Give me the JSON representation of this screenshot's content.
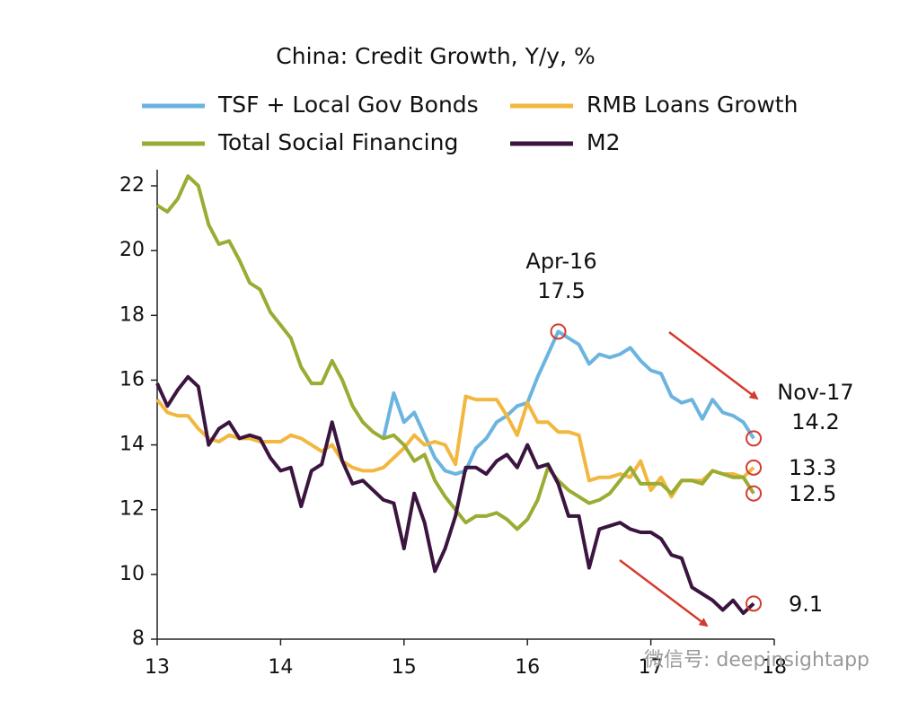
{
  "chart_data": {
    "type": "line",
    "title": "China: Credit Growth, Y/y, %",
    "x": [
      13,
      13.083,
      13.167,
      13.25,
      13.333,
      13.417,
      13.5,
      13.583,
      13.667,
      13.75,
      13.833,
      13.917,
      14,
      14.083,
      14.167,
      14.25,
      14.333,
      14.417,
      14.5,
      14.583,
      14.667,
      14.75,
      14.833,
      14.917,
      15,
      15.083,
      15.167,
      15.25,
      15.333,
      15.417,
      15.5,
      15.583,
      15.667,
      15.75,
      15.833,
      15.917,
      16,
      16.083,
      16.167,
      16.25,
      16.333,
      16.417,
      16.5,
      16.583,
      16.667,
      16.75,
      16.833,
      16.917,
      17,
      17.083,
      17.167,
      17.25,
      17.333,
      17.417,
      17.5,
      17.583,
      17.667,
      17.75,
      17.833
    ],
    "series": [
      {
        "name": "TSF + Local Gov Bonds",
        "color": "#6cb4e0",
        "values": [
          null,
          null,
          null,
          null,
          null,
          null,
          null,
          null,
          null,
          null,
          null,
          null,
          null,
          null,
          null,
          null,
          null,
          null,
          null,
          null,
          null,
          null,
          14.2,
          15.6,
          14.7,
          15.0,
          14.3,
          13.6,
          13.2,
          13.1,
          13.2,
          13.9,
          14.2,
          14.7,
          14.9,
          15.2,
          15.3,
          16.1,
          16.8,
          17.5,
          17.3,
          17.1,
          16.5,
          16.8,
          16.7,
          16.8,
          17.0,
          16.6,
          16.3,
          16.2,
          15.5,
          15.3,
          15.4,
          14.8,
          15.4,
          15.0,
          14.9,
          14.7,
          14.2
        ]
      },
      {
        "name": "RMB Loans Growth",
        "color": "#f2b73f",
        "values": [
          15.4,
          15.0,
          14.9,
          14.9,
          14.5,
          14.2,
          14.1,
          14.3,
          14.2,
          14.2,
          14.1,
          14.1,
          14.1,
          14.3,
          14.2,
          14.0,
          13.8,
          14.0,
          13.5,
          13.3,
          13.2,
          13.2,
          13.3,
          13.6,
          13.9,
          14.3,
          14.0,
          14.1,
          14.0,
          13.4,
          15.5,
          15.4,
          15.4,
          15.4,
          14.9,
          14.3,
          15.3,
          14.7,
          14.7,
          14.4,
          14.4,
          14.3,
          12.9,
          13.0,
          13.0,
          13.1,
          13.0,
          13.5,
          12.6,
          13.0,
          12.4,
          12.9,
          12.9,
          12.9,
          13.2,
          13.1,
          13.1,
          13.0,
          13.3
        ]
      },
      {
        "name": "Total Social Financing",
        "color": "#9aac34",
        "values": [
          21.4,
          21.2,
          21.6,
          22.3,
          22.0,
          20.8,
          20.2,
          20.3,
          19.7,
          19.0,
          18.8,
          18.1,
          17.7,
          17.3,
          16.4,
          15.9,
          15.9,
          16.6,
          16.0,
          15.2,
          14.7,
          14.4,
          14.2,
          14.3,
          14.0,
          13.5,
          13.7,
          12.9,
          12.4,
          12.0,
          11.6,
          11.8,
          11.8,
          11.9,
          11.7,
          11.4,
          11.7,
          12.3,
          13.3,
          12.9,
          12.6,
          12.4,
          12.2,
          12.3,
          12.5,
          12.9,
          13.3,
          12.8,
          12.8,
          12.8,
          12.5,
          12.9,
          12.9,
          12.8,
          13.2,
          13.1,
          13.0,
          13.0,
          12.5
        ]
      },
      {
        "name": "M2",
        "color": "#3b1540",
        "values": [
          15.9,
          15.2,
          15.7,
          16.1,
          15.8,
          14.0,
          14.5,
          14.7,
          14.2,
          14.3,
          14.2,
          13.6,
          13.2,
          13.3,
          12.1,
          13.2,
          13.4,
          14.7,
          13.5,
          12.8,
          12.9,
          12.6,
          12.3,
          12.2,
          10.8,
          12.5,
          11.6,
          10.1,
          10.8,
          11.8,
          13.3,
          13.3,
          13.1,
          13.5,
          13.7,
          13.3,
          14.0,
          13.3,
          13.4,
          12.8,
          11.8,
          11.8,
          10.2,
          11.4,
          11.5,
          11.6,
          11.4,
          11.3,
          11.3,
          11.1,
          10.6,
          10.5,
          9.6,
          9.4,
          9.2,
          8.9,
          9.2,
          8.8,
          9.1
        ]
      }
    ],
    "xlim": [
      13,
      18
    ],
    "xticks": [
      13,
      14,
      15,
      16,
      17,
      18
    ],
    "ylim": [
      8,
      22.5
    ],
    "yticks": [
      8,
      10,
      12,
      14,
      16,
      18,
      20,
      22
    ],
    "annotations": [
      "Apr-16",
      "17.5",
      "Nov-17",
      "14.2",
      "13.3",
      "12.5",
      "9.1"
    ],
    "highlight_color": "#d63a2f",
    "watermark": "微信号: deepinsightapp"
  }
}
